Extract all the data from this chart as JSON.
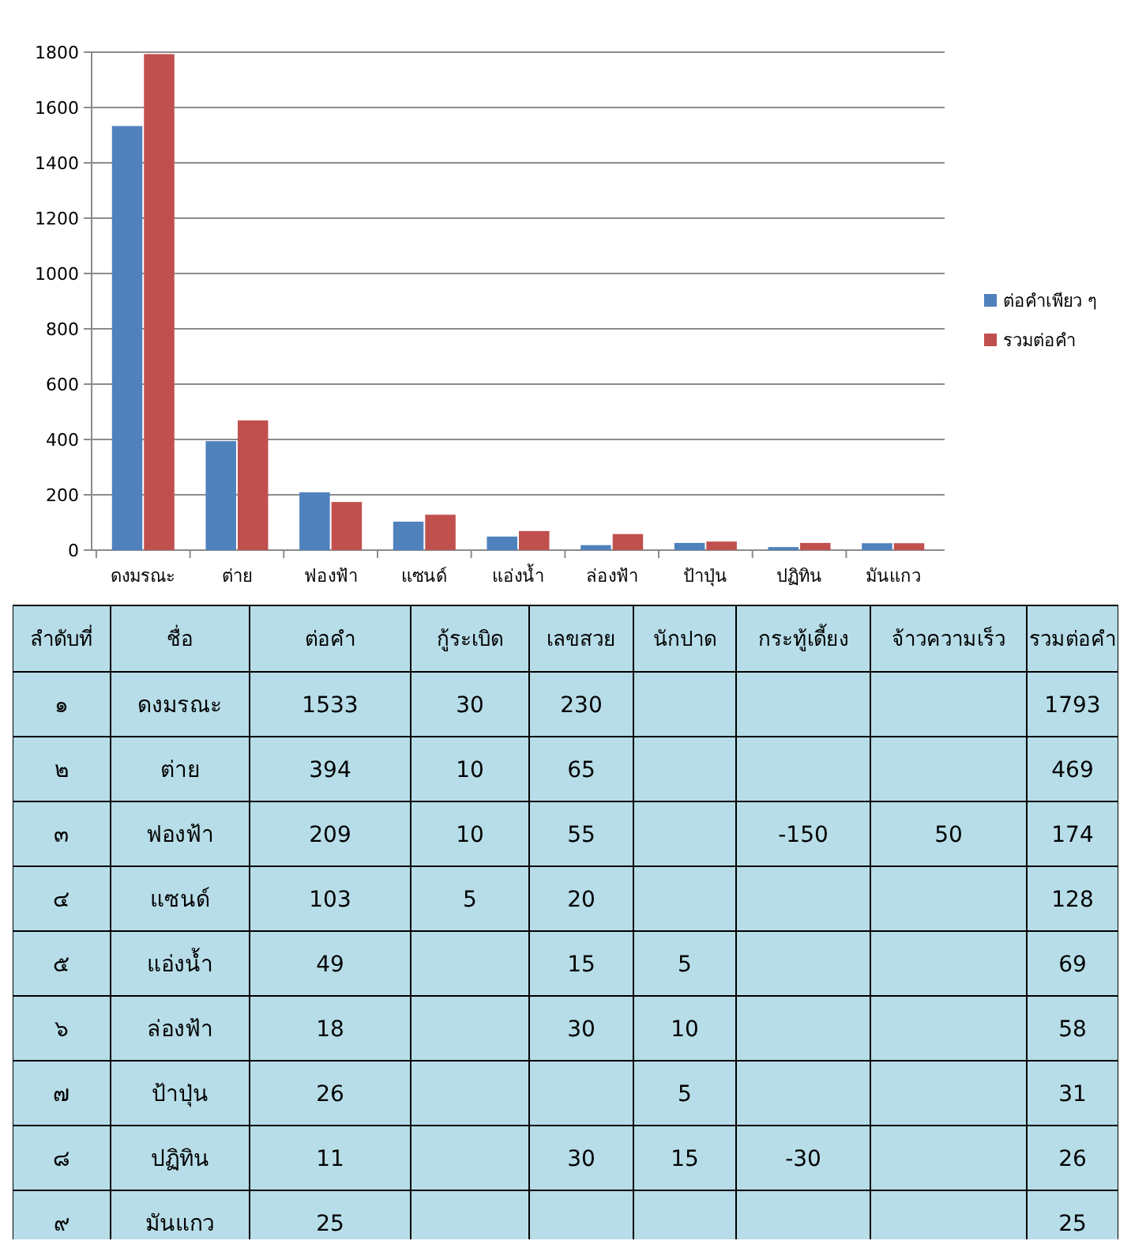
{
  "chart_data": [
    {
      "type": "bar",
      "categories": [
        "ดงมรณะ",
        "ต่าย",
        "ฟองฟ้า",
        "แซนด์",
        "แอ่งน้ำ",
        "ล่องฟ้า",
        "ป้าปุ่น",
        "ปฏิทิน",
        "มันแกว"
      ],
      "series": [
        {
          "name": "ต่อคำเพียว ๆ",
          "color": "#4f81bd",
          "values": [
            1533,
            394,
            209,
            103,
            49,
            18,
            26,
            11,
            25
          ]
        },
        {
          "name": "รวมต่อคำ",
          "color": "#c0504d",
          "values": [
            1793,
            469,
            174,
            128,
            69,
            58,
            31,
            26,
            25
          ]
        }
      ],
      "ylim": [
        0,
        1800
      ],
      "yticks": [
        0,
        200,
        400,
        600,
        800,
        1000,
        1200,
        1400,
        1600,
        1800
      ],
      "grid": "y",
      "legend": "right"
    },
    {
      "type": "heatmap",
      "categories": [
        "ต่อคำ",
        "กู้ระเบิด",
        "เลขสวย",
        "นักปาด",
        "กระทู้เดี้ยง",
        "จ้าวความเร็ว",
        "รวมต่อคำ"
      ],
      "y_categories": [
        "ดงมรณะ",
        "ต่าย",
        "ฟองฟ้า",
        "แซนด์",
        "แอ่งน้ำ",
        "ล่องฟ้า",
        "ป้าปุ่น",
        "ปฏิทิน",
        "มันแกว"
      ],
      "annotations": [
        "ลำดับที่",
        "ชื่อ",
        "๑",
        "๒",
        "๓",
        "๔",
        "๕",
        "๖",
        "๗",
        "๘",
        "๙"
      ],
      "data_labels": true,
      "cells": [
        [
          1533,
          30,
          230,
          null,
          null,
          null,
          1793
        ],
        [
          394,
          10,
          65,
          null,
          null,
          null,
          469
        ],
        [
          209,
          10,
          55,
          null,
          -150,
          50,
          174
        ],
        [
          103,
          5,
          20,
          null,
          null,
          null,
          128
        ],
        [
          49,
          null,
          15,
          5,
          null,
          null,
          69
        ],
        [
          18,
          null,
          30,
          10,
          null,
          null,
          58
        ],
        [
          26,
          null,
          null,
          5,
          null,
          null,
          31
        ],
        [
          11,
          null,
          30,
          15,
          -30,
          null,
          26
        ],
        [
          25,
          null,
          null,
          null,
          null,
          null,
          25
        ]
      ]
    }
  ]
}
